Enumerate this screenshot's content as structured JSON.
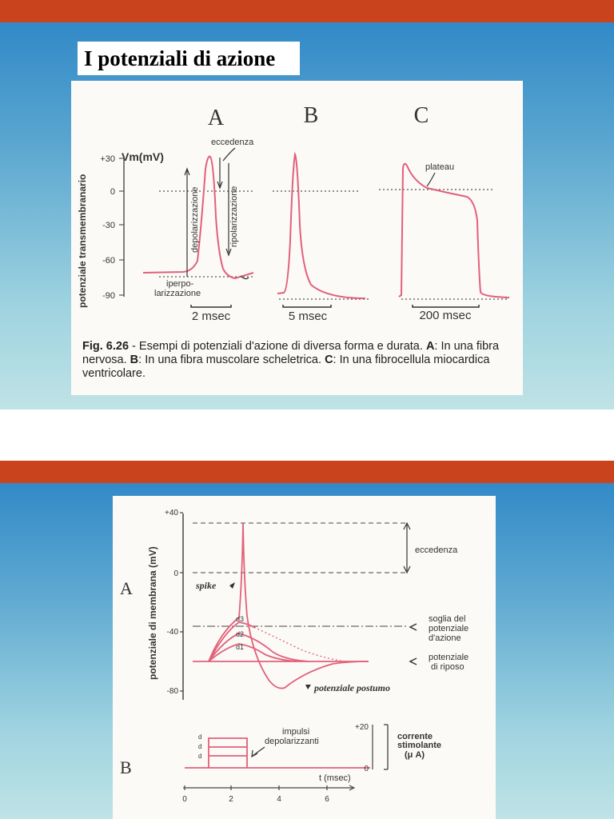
{
  "slide1": {
    "title": "I potenziali di azione",
    "figure": {
      "col_labels": [
        "A",
        "B",
        "C"
      ],
      "y_axis_label": "potenziale transmembranario",
      "y_unit": "Vm(mV)",
      "y_ticks": [
        "+30",
        "0",
        "-30",
        "-60",
        "-90"
      ],
      "annotations": {
        "eccedenza": "eccedenza",
        "depolarizzazione": "depolarizzazione",
        "ripolarizzazione": "ripolarizzazione",
        "iperpolarizzazione_1": "iperpo-",
        "iperpolarizzazione_2": "larizzazione",
        "plateau": "plateau"
      },
      "scale_bars": [
        "2 msec",
        "5 msec",
        "200 msec"
      ],
      "caption": {
        "fig": "Fig. 6.26",
        "text1": " - Esempi di potenziali d'azione di diversa forma e durata. ",
        "A": "A",
        "text2": ": In una fibra nervosa. ",
        "B": "B",
        "text3": ": In una fibra muscolare scheletrica. ",
        "C": "C",
        "text4": ": In una fibrocellula miocardica ventricolare."
      }
    }
  },
  "slide2": {
    "panel_labels": [
      "A",
      "B"
    ],
    "y_axis_label": "potenziale di membrana (mV)",
    "y_ticks": [
      "+40",
      "0",
      "-40",
      "-80"
    ],
    "labels": {
      "spike": "spike",
      "eccedenza": "eccedenza",
      "soglia": [
        "soglia del",
        "potenziale",
        "d'azione"
      ],
      "riposo": [
        "potenziale",
        "di riposo"
      ],
      "postumo": "potenziale postumo",
      "impulsi": [
        "impulsi",
        "depolarizzanti"
      ],
      "corrente": [
        "corrente",
        "stimolante",
        "(μ A)"
      ],
      "d_labels": [
        "d3",
        "d2",
        "d1"
      ],
      "t_axis": "t (msec)",
      "current_ticks": [
        "+20",
        "0"
      ],
      "t_ticks": [
        "0",
        "2",
        "4",
        "6"
      ]
    }
  }
}
